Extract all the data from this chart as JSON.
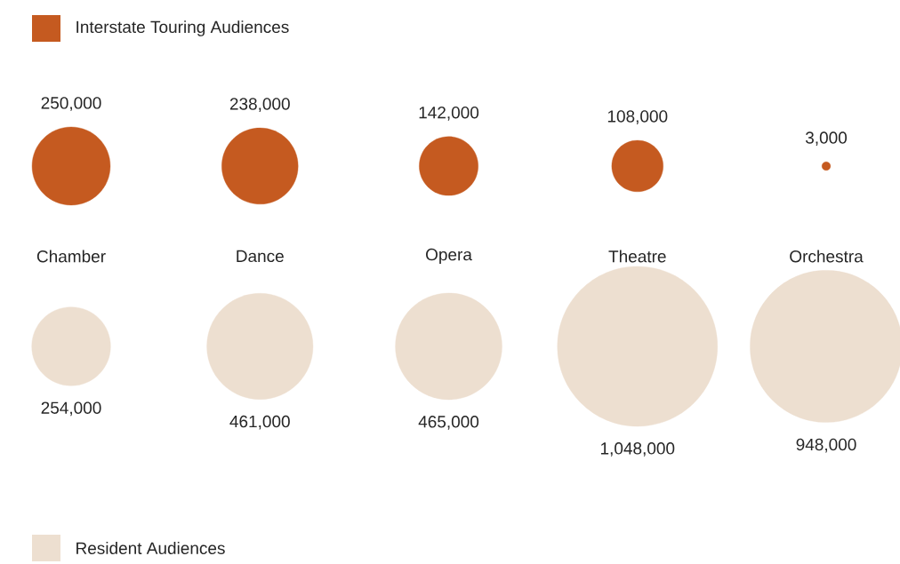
{
  "chart_data": {
    "type": "other",
    "legend": "top left",
    "categories": [
      "Chamber",
      "Dance",
      "Opera",
      "Theatre",
      "Orchestra"
    ],
    "series": [
      {
        "name": "Interstate Touring Audiences",
        "color": "#c55a20",
        "values": [
          250000,
          238000,
          142000,
          108000,
          3000
        ],
        "value_labels": [
          "250,000",
          "238,000",
          "142,000",
          "108,000",
          "3,000"
        ]
      },
      {
        "name": "Resident Audiences",
        "color": "#eddfd0",
        "values": [
          254000,
          461000,
          465000,
          1048000,
          948000
        ],
        "value_labels": [
          "254,000",
          "461,000",
          "465,000",
          "1,048,000",
          "948,000"
        ]
      }
    ]
  }
}
